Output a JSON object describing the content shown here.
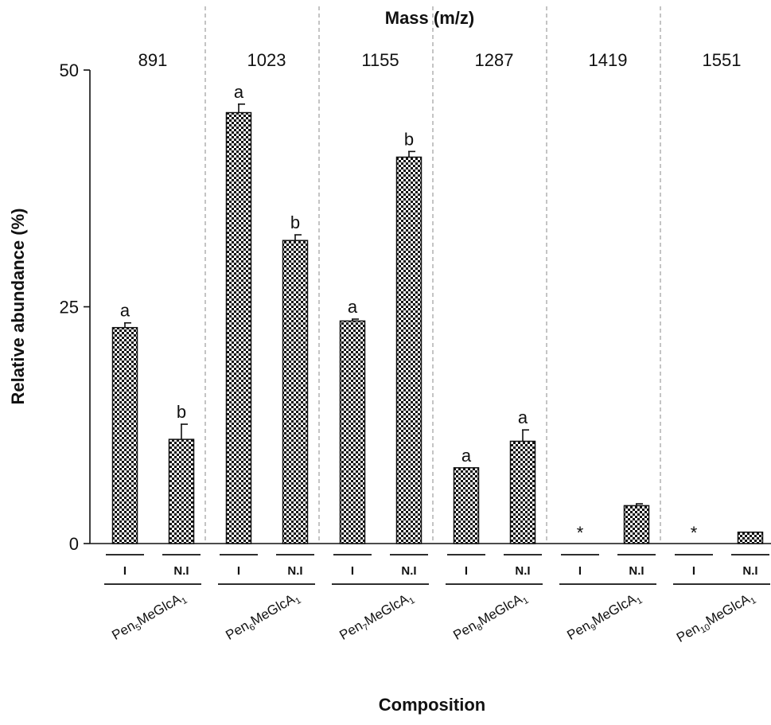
{
  "chart_data": {
    "type": "bar",
    "top_axis_title": "Mass (m/z)",
    "ylabel": "Relative abundance (%)",
    "xlabel": "Composition",
    "ylim": [
      0,
      50
    ],
    "yticks": [
      0,
      25,
      50
    ],
    "series_labels": [
      "I",
      "N.I"
    ],
    "groups": [
      {
        "mass": "891",
        "composition": {
          "base": "Pen",
          "n": "5",
          "mid": "MeGlcA",
          "m": "1"
        },
        "bars": [
          {
            "label": "I",
            "value": 22.8,
            "error": 0.5,
            "sig": "a"
          },
          {
            "label": "N.I",
            "value": 11.0,
            "error": 1.6,
            "sig": "b"
          }
        ]
      },
      {
        "mass": "1023",
        "composition": {
          "base": "Pen",
          "n": "6",
          "mid": "MeGlcA",
          "m": "1"
        },
        "bars": [
          {
            "label": "I",
            "value": 45.5,
            "error": 0.9,
            "sig": "a"
          },
          {
            "label": "N.I",
            "value": 32.0,
            "error": 0.6,
            "sig": "b"
          }
        ]
      },
      {
        "mass": "1155",
        "composition": {
          "base": "Pen",
          "n": "7",
          "mid": "MeGlcA",
          "m": "1"
        },
        "bars": [
          {
            "label": "I",
            "value": 23.5,
            "error": 0.2,
            "sig": "a"
          },
          {
            "label": "N.I",
            "value": 40.8,
            "error": 0.6,
            "sig": "b"
          }
        ]
      },
      {
        "mass": "1287",
        "composition": {
          "base": "Pen",
          "n": "8",
          "mid": "MeGlcA",
          "m": "1"
        },
        "bars": [
          {
            "label": "I",
            "value": 8.0,
            "error": 0.0,
            "sig": "a"
          },
          {
            "label": "N.I",
            "value": 10.8,
            "error": 1.2,
            "sig": "a"
          }
        ]
      },
      {
        "mass": "1419",
        "composition": {
          "base": "Pen",
          "n": "9",
          "mid": "MeGlcA",
          "m": "1"
        },
        "bars": [
          {
            "label": "I",
            "value": 0,
            "error": 0,
            "sig": "*"
          },
          {
            "label": "N.I",
            "value": 4.0,
            "error": 0.2,
            "sig": ""
          }
        ]
      },
      {
        "mass": "1551",
        "composition": {
          "base": "Pen",
          "n": "10",
          "mid": "MeGlcA",
          "m": "1"
        },
        "bars": [
          {
            "label": "I",
            "value": 0,
            "error": 0,
            "sig": "*"
          },
          {
            "label": "N.I",
            "value": 1.2,
            "error": 0.0,
            "sig": ""
          }
        ]
      }
    ]
  }
}
